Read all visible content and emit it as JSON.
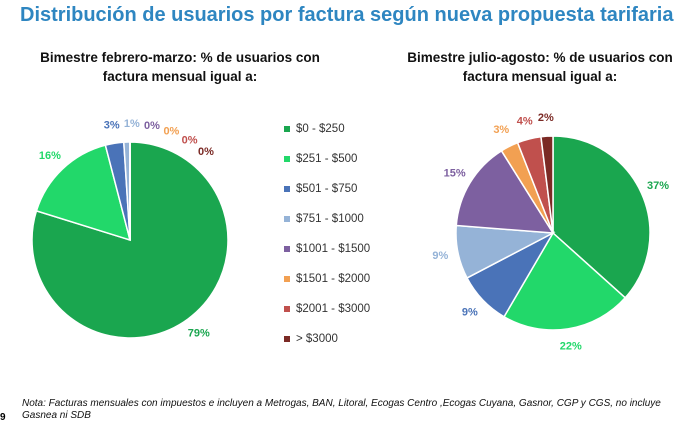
{
  "title": "Distribución de usuarios por factura según nueva propuesta tarifaria",
  "note": "Nota: Facturas mensuales con impuestos e incluyen a Metrogas, BAN, Litoral, Ecogas Centro ,Ecogas Cuyana, Gasnor, CGP y CGS, no incluye Gasnea ni SDB",
  "page_number": "9",
  "chart_data": [
    {
      "type": "pie",
      "title": "Bimestre febrero-marzo: % de usuarios con factura mensual igual a:",
      "categories": [
        "$0 - $250",
        "$251 - $500",
        "$501 - $750",
        "$751 - $1000",
        "$1001 - $1500",
        "$1501 - $2000",
        "$2001 - $3000",
        "> $3000"
      ],
      "values": [
        79,
        16,
        3,
        1,
        0,
        0,
        0,
        0
      ],
      "value_labels": [
        "79%",
        "16%",
        "3%",
        "1%",
        "0%",
        "0%",
        "0%",
        "0%"
      ],
      "colors": [
        "#1aa64f",
        "#22d86a",
        "#4a73b8",
        "#95b3d7",
        "#7d60a0",
        "#f2a052",
        "#c0504d",
        "#7b2a25"
      ],
      "legend": "right"
    },
    {
      "type": "pie",
      "title": "Bimestre julio-agosto: % de usuarios con factura mensual igual a:",
      "categories": [
        "$0 - $250",
        "$251 - $500",
        "$501 - $750",
        "$751 - $1000",
        "$1001 - $1500",
        "$1501 - $2000",
        "$2001 - $3000",
        "> $3000"
      ],
      "values": [
        37,
        22,
        9,
        9,
        15,
        3,
        4,
        2
      ],
      "value_labels": [
        "37%",
        "22%",
        "9%",
        "9%",
        "15%",
        "3%",
        "4%",
        "2%"
      ],
      "colors": [
        "#1aa64f",
        "#22d86a",
        "#4a73b8",
        "#95b3d7",
        "#7d60a0",
        "#f2a052",
        "#c0504d",
        "#7b2a25"
      ]
    }
  ]
}
